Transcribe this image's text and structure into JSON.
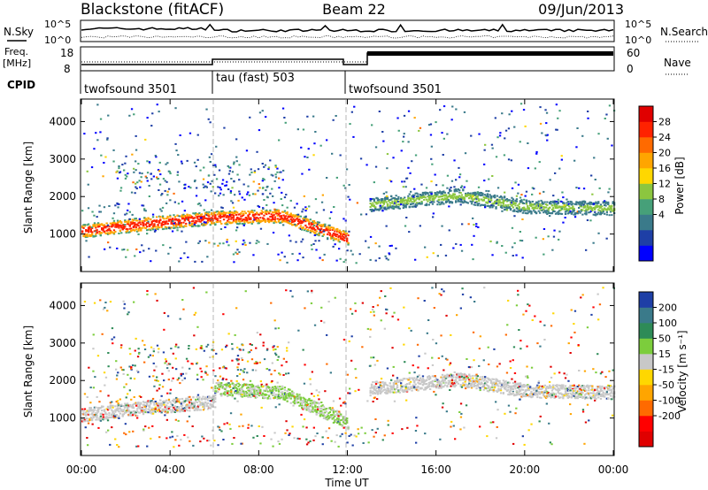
{
  "header": {
    "site": "Blackstone (fitACF)",
    "beam": "Beam 22",
    "date": "09/Jun/2013"
  },
  "left_labels": {
    "nsky": "N.Sky",
    "freq_line1": "Freq.",
    "freq_line2": "[MHz]",
    "cpid": "CPID"
  },
  "right_labels": {
    "nsearch": "N.Search",
    "nave": "Nave"
  },
  "noise_ticks": {
    "top": "10^5",
    "bottom": "10^0"
  },
  "freq_ticks": {
    "top": "18",
    "bottom": "8"
  },
  "nave_ticks": {
    "top": "60",
    "bottom": "0"
  },
  "cpid_segments": [
    {
      "label": "twofsound 3501",
      "start": 0,
      "end": 6
    },
    {
      "label": "tau (fast) 503",
      "start": 6,
      "end": 12
    },
    {
      "label": "twofsound 3501",
      "start": 12,
      "end": 24
    }
  ],
  "colors": {
    "power": [
      "#0000ff",
      "#1e3fa6",
      "#3a7a8a",
      "#46a079",
      "#8cc63f",
      "#ffd700",
      "#ffa500",
      "#ff6a00",
      "#ff2200",
      "#e00000"
    ],
    "velocity": [
      "#1e3fa6",
      "#3a7a8a",
      "#2e8b57",
      "#7ccd3c",
      "#c8c8c8",
      "#ffd700",
      "#ffa500",
      "#ff6a00",
      "#ff0000",
      "#e00000"
    ]
  },
  "power_colorbar": {
    "label": "Power [dB]",
    "ticks": [
      "28",
      "24",
      "20",
      "16",
      "12",
      "8",
      "4"
    ]
  },
  "velocity_colorbar": {
    "label": "Velocity [m s⁻¹]",
    "ticks": [
      "200",
      "100",
      "50",
      "15",
      "-15",
      "-50",
      "-100",
      "-200"
    ]
  },
  "chart_data": [
    {
      "type": "heatmap",
      "title": "Power",
      "xlabel": "Time UT",
      "ylabel": "Slant Range [km]",
      "xlim": [
        0,
        24
      ],
      "ylim": [
        0,
        4600
      ],
      "x_ticks": [
        "00:00",
        "04:00",
        "08:00",
        "12:00",
        "16:00",
        "20:00",
        "00:00"
      ],
      "y_ticks": [
        "1000",
        "2000",
        "3000",
        "4000"
      ],
      "colorbar": {
        "label": "Power [dB]",
        "range": [
          0,
          32
        ]
      },
      "bands": [
        {
          "t": [
            0,
            3,
            6
          ],
          "range_km": [
            1100,
            1300,
            1450
          ],
          "value_db": 24
        },
        {
          "t": [
            6,
            9,
            12
          ],
          "range_km": [
            1450,
            1500,
            900
          ],
          "value_db": 20
        },
        {
          "t": [
            13,
            17,
            20,
            24
          ],
          "range_km": [
            1800,
            2050,
            1750,
            1700
          ],
          "value_db": 10
        }
      ]
    },
    {
      "type": "heatmap",
      "title": "Velocity",
      "xlabel": "Time UT",
      "ylabel": "Slant Range [km]",
      "xlim": [
        0,
        24
      ],
      "ylim": [
        0,
        4600
      ],
      "x_ticks": [
        "00:00",
        "04:00",
        "08:00",
        "12:00",
        "16:00",
        "20:00",
        "00:00"
      ],
      "y_ticks": [
        "1000",
        "2000",
        "3000",
        "4000"
      ],
      "colorbar": {
        "label": "Velocity [m s⁻¹]",
        "range": [
          -250,
          250
        ]
      },
      "bands": [
        {
          "t": [
            0,
            3,
            6
          ],
          "range_km": [
            1100,
            1300,
            1450
          ],
          "value_ms": 0
        },
        {
          "t": [
            6,
            9,
            12
          ],
          "range_km": [
            1800,
            1700,
            900
          ],
          "value_ms": 40
        },
        {
          "t": [
            13,
            17,
            20,
            24
          ],
          "range_km": [
            1800,
            2050,
            1750,
            1700
          ],
          "value_ms": 0
        }
      ]
    }
  ]
}
